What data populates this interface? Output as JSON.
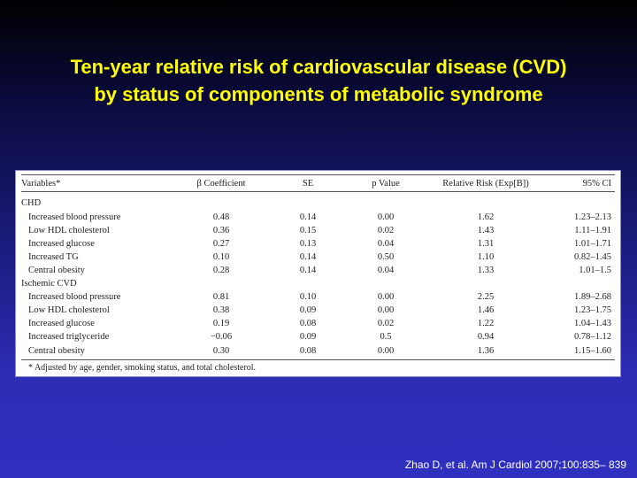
{
  "slide": {
    "title_line1": "Ten-year relative risk of cardiovascular disease (CVD)",
    "title_line2": "by status of components of metabolic syndrome",
    "citation": "Zhao D, et al. Am J Cardiol 2007;100:835– 839"
  },
  "table": {
    "headers": [
      "Variables*",
      "β Coefficient",
      "SE",
      "p Value",
      "Relative Risk (Exp[B])",
      "95% CI"
    ],
    "group_chd": "CHD",
    "chd_rows": [
      {
        "variable": "Increased blood pressure",
        "beta": "0.48",
        "se": "0.14",
        "p": "0.00",
        "rr": "1.62",
        "ci": "1.23–2.13"
      },
      {
        "variable": "Low HDL cholesterol",
        "beta": "0.36",
        "se": "0.15",
        "p": "0.02",
        "rr": "1.43",
        "ci": "1.11–1.91"
      },
      {
        "variable": "Increased glucose",
        "beta": "0.27",
        "se": "0.13",
        "p": "0.04",
        "rr": "1.31",
        "ci": "1.01–1.71"
      },
      {
        "variable": "Increased TG",
        "beta": "0.10",
        "se": "0.14",
        "p": "0.50",
        "rr": "1.10",
        "ci": "0.82–1.45"
      },
      {
        "variable": "Central obesity",
        "beta": "0.28",
        "se": "0.14",
        "p": "0.04",
        "rr": "1.33",
        "ci": "1.01–1.5"
      }
    ],
    "group_ischemic": "Ischemic CVD",
    "ischemic_rows": [
      {
        "variable": "Increased blood pressure",
        "beta": "0.81",
        "se": "0.10",
        "p": "0.00",
        "rr": "2.25",
        "ci": "1.89–2.68"
      },
      {
        "variable": "Low HDL cholesterol",
        "beta": "0.38",
        "se": "0.09",
        "p": "0.00",
        "rr": "1.46",
        "ci": "1.23–1.75"
      },
      {
        "variable": "Increased glucose",
        "beta": "0.19",
        "se": "0.08",
        "p": "0.02",
        "rr": "1.22",
        "ci": "1.04–1.43"
      },
      {
        "variable": "Increased triglyceride",
        "beta": "−0.06",
        "se": "0.09",
        "p": "0.5",
        "rr": "0.94",
        "ci": "0.78–1.12"
      },
      {
        "variable": "Central obesity",
        "beta": "0.30",
        "se": "0.08",
        "p": "0.00",
        "rr": "1.36",
        "ci": "1.15–1.60"
      }
    ],
    "footnote": "* Adjusted by age, gender, smoking status, and total cholesterol."
  }
}
